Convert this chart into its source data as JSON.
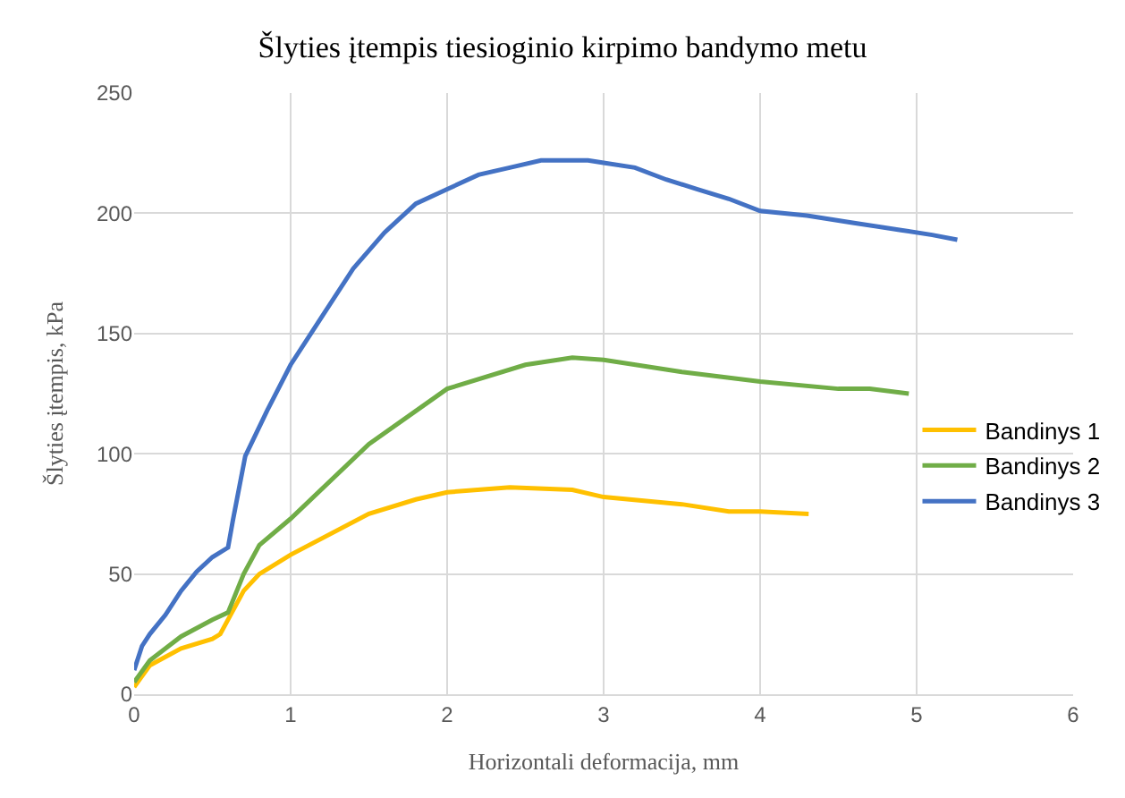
{
  "chart_data": {
    "type": "line",
    "title": "Šlyties įtempis tiesioginio kirpimo bandymo metu",
    "xlabel": "Horizontali deformacija, mm",
    "ylabel": "Šlyties įtempis, kPa",
    "xlim": [
      0,
      6
    ],
    "xticks": [
      0,
      1,
      2,
      3,
      4,
      5,
      6
    ],
    "ylim": [
      0,
      250
    ],
    "yticks": [
      0,
      50,
      100,
      150,
      200,
      250
    ],
    "grid": true,
    "legend": "right",
    "marker": "none",
    "line_style": "solid",
    "series": [
      {
        "name": "Bandinys 1",
        "color": "#ffc000",
        "x": [
          0,
          0.1,
          0.3,
          0.5,
          0.55,
          0.6,
          0.7,
          0.8,
          1.0,
          1.5,
          1.8,
          2.0,
          2.4,
          2.8,
          3.0,
          3.5,
          3.8,
          4.0,
          4.31
        ],
        "values": [
          3,
          12,
          19,
          23,
          25,
          31,
          43,
          50,
          58,
          75,
          81,
          84,
          86,
          85,
          82,
          79,
          76,
          76,
          75
        ]
      },
      {
        "name": "Bandinys 2",
        "color": "#70ad47",
        "x": [
          0,
          0.1,
          0.3,
          0.5,
          0.6,
          0.7,
          0.8,
          1.0,
          1.5,
          2.0,
          2.5,
          2.8,
          3.0,
          3.5,
          4.0,
          4.5,
          4.7,
          4.95
        ],
        "values": [
          5,
          14,
          24,
          31,
          34,
          50,
          62,
          73,
          104,
          127,
          137,
          140,
          139,
          134,
          130,
          127,
          127,
          125
        ]
      },
      {
        "name": "Bandinys 3",
        "color": "#4472c4",
        "x": [
          0,
          0.05,
          0.1,
          0.2,
          0.3,
          0.4,
          0.5,
          0.6,
          0.63,
          0.71,
          0.85,
          1.0,
          1.2,
          1.4,
          1.6,
          1.8,
          2.0,
          2.2,
          2.4,
          2.6,
          2.9,
          3.0,
          3.2,
          3.4,
          3.6,
          3.8,
          4.0,
          4.3,
          4.6,
          4.9,
          5.1,
          5.26
        ],
        "values": [
          10,
          20,
          25,
          33,
          43,
          51,
          57,
          61,
          72,
          99,
          118,
          137,
          157,
          177,
          192,
          204,
          210,
          216,
          219,
          222,
          222,
          221,
          219,
          214,
          210,
          206,
          201,
          199,
          196,
          193,
          191,
          189
        ]
      }
    ]
  }
}
